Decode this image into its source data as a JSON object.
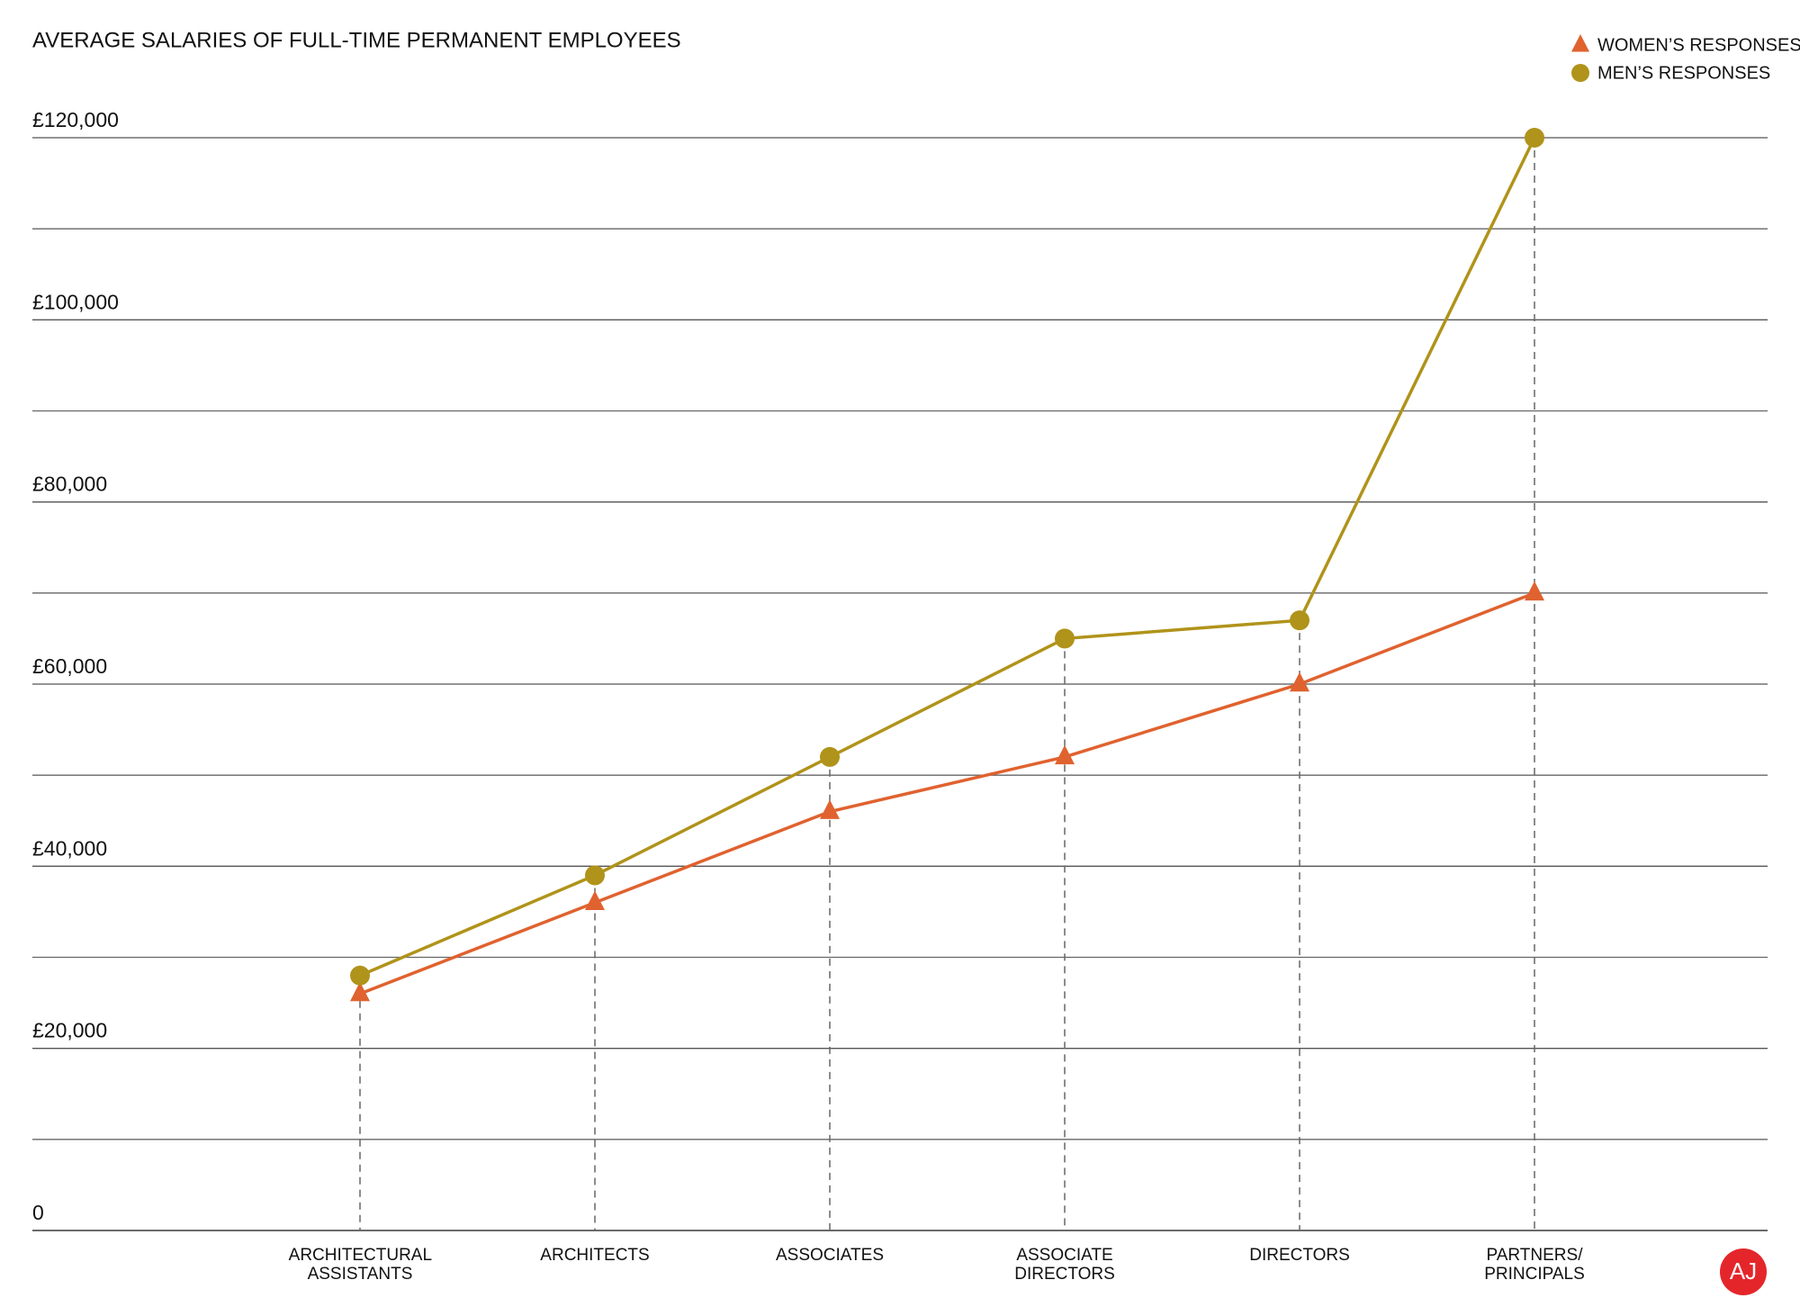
{
  "chart_data": {
    "type": "line",
    "title": "AVERAGE SALARIES OF FULL-TIME PERMANENT EMPLOYEES",
    "categories": [
      "ARCHITECTURAL ASSISTANTS",
      "ARCHITECTS",
      "ASSOCIATES",
      "ASSOCIATE DIRECTORS",
      "DIRECTORS",
      "PARTNERS/ PRINCIPALS"
    ],
    "series": [
      {
        "name": "WOMEN’S RESPONSES",
        "color": "#e0622f",
        "marker": "triangle",
        "values": [
          26000,
          36000,
          46000,
          52000,
          60000,
          70000
        ]
      },
      {
        "name": "MEN’S RESPONSES",
        "color": "#b0931a",
        "marker": "circle",
        "values": [
          28000,
          39000,
          52000,
          65000,
          67000,
          120000
        ]
      }
    ],
    "ylim": [
      0,
      120000
    ],
    "yticks": [
      0,
      {
        "value": 20000,
        "label": "£20,000"
      },
      {
        "value": 40000,
        "label": "£40,000"
      },
      {
        "value": 60000,
        "label": "£60,000"
      },
      {
        "value": 80000,
        "label": "£80,000"
      },
      {
        "value": 100000,
        "label": "£100,000"
      },
      {
        "value": 120000,
        "label": "£120,000"
      }
    ],
    "yticks_minor": [
      10000,
      30000,
      50000,
      70000,
      90000,
      110000
    ],
    "grid": true,
    "legend": "top-right",
    "logo": "AJ"
  }
}
